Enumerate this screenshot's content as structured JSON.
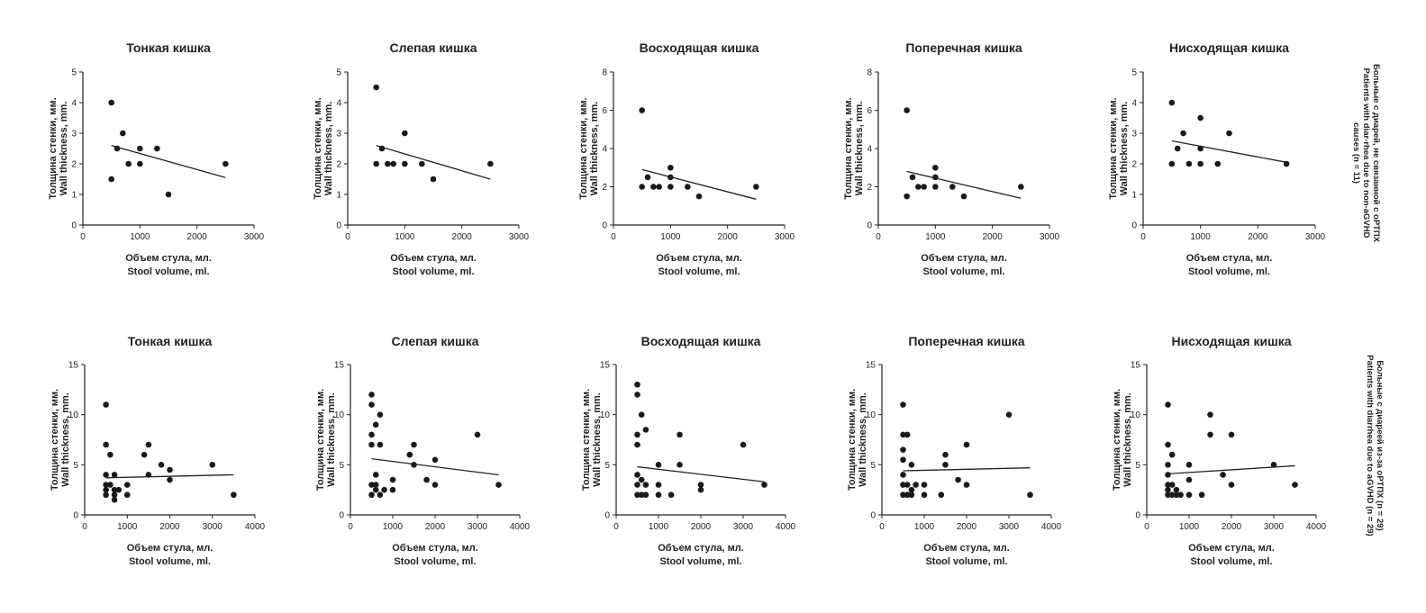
{
  "figure": {
    "row_labels": [
      [
        "Больные с диарей, не связанной с оРТПХ",
        "Patients with diar-rhea due to non-aGVHD",
        "causes (n = 11)"
      ],
      [
        "Больные с диареей из-за оРТПХ (n = 29)",
        "Patients with diarrhea due to aGVHD (n = 29)"
      ]
    ]
  },
  "chart_data": [
    {
      "type": "scatter",
      "title": "Тонкая кишка",
      "xlabel": [
        "Объем стула, мл.",
        "Stool volume, ml."
      ],
      "ylabel": [
        "Толщина стенки, мм.",
        "Wall thickness, mm."
      ],
      "xlim": [
        0,
        3000
      ],
      "ylim": [
        0,
        5
      ],
      "xticks": [
        0,
        1000,
        2000,
        3000
      ],
      "yticks": [
        0,
        1,
        2,
        3,
        4,
        5
      ],
      "points": [
        [
          500,
          4
        ],
        [
          500,
          1.5
        ],
        [
          600,
          2.5
        ],
        [
          700,
          3
        ],
        [
          800,
          2
        ],
        [
          1000,
          2.5
        ],
        [
          1000,
          2
        ],
        [
          1300,
          2.5
        ],
        [
          1500,
          1
        ],
        [
          2500,
          2
        ]
      ],
      "trendline": [
        [
          500,
          2.6
        ],
        [
          2500,
          1.55
        ]
      ]
    },
    {
      "type": "scatter",
      "title": "Слепая кишка",
      "xlabel": [
        "Объем стула, мл.",
        "Stool volume, ml."
      ],
      "ylabel": [
        "Толщина стенки, мм.",
        "Wall thickness, mm."
      ],
      "xlim": [
        0,
        3000
      ],
      "ylim": [
        0,
        5
      ],
      "xticks": [
        0,
        1000,
        2000,
        3000
      ],
      "yticks": [
        0,
        1,
        2,
        3,
        4,
        5
      ],
      "points": [
        [
          500,
          4.5
        ],
        [
          500,
          2
        ],
        [
          600,
          2.5
        ],
        [
          700,
          2
        ],
        [
          800,
          2
        ],
        [
          1000,
          3
        ],
        [
          1000,
          2
        ],
        [
          1300,
          2
        ],
        [
          1500,
          1.5
        ],
        [
          2500,
          2
        ]
      ],
      "trendline": [
        [
          500,
          2.6
        ],
        [
          2500,
          1.5
        ]
      ]
    },
    {
      "type": "scatter",
      "title": "Восходящая кишка",
      "xlabel": [
        "Объем стула, мл.",
        "Stool volume, ml."
      ],
      "ylabel": [
        "Толщина стенки, мм.",
        "Wall thickness, mm."
      ],
      "xlim": [
        0,
        3000
      ],
      "ylim": [
        0,
        8
      ],
      "xticks": [
        0,
        1000,
        2000,
        3000
      ],
      "yticks": [
        0,
        2,
        4,
        6,
        8
      ],
      "points": [
        [
          500,
          6
        ],
        [
          500,
          2
        ],
        [
          600,
          2.5
        ],
        [
          700,
          2
        ],
        [
          800,
          2
        ],
        [
          1000,
          3
        ],
        [
          1000,
          2.5
        ],
        [
          1000,
          2
        ],
        [
          1300,
          2
        ],
        [
          1500,
          1.5
        ],
        [
          2500,
          2
        ]
      ],
      "trendline": [
        [
          500,
          2.9
        ],
        [
          2500,
          1.35
        ]
      ]
    },
    {
      "type": "scatter",
      "title": "Поперечная кишка",
      "xlabel": [
        "Объем стула, мл.",
        "Stool volume, ml."
      ],
      "ylabel": [
        "Толщина стенки, мм.",
        "Wall thickness, mm."
      ],
      "xlim": [
        0,
        3000
      ],
      "ylim": [
        0,
        8
      ],
      "xticks": [
        0,
        1000,
        2000,
        3000
      ],
      "yticks": [
        0,
        2,
        4,
        6,
        8
      ],
      "points": [
        [
          500,
          6
        ],
        [
          500,
          1.5
        ],
        [
          600,
          2.5
        ],
        [
          700,
          2
        ],
        [
          800,
          2
        ],
        [
          1000,
          3
        ],
        [
          1000,
          2.5
        ],
        [
          1000,
          2
        ],
        [
          1300,
          2
        ],
        [
          1500,
          1.5
        ],
        [
          2500,
          2
        ]
      ],
      "trendline": [
        [
          500,
          2.8
        ],
        [
          2500,
          1.4
        ]
      ]
    },
    {
      "type": "scatter",
      "title": "Нисходящая кишка",
      "xlabel": [
        "Объем стула, мл.",
        "Stool volume, ml."
      ],
      "ylabel": [
        "Толщина стенки, мм.",
        "Wall thickness, mm."
      ],
      "xlim": [
        0,
        3000
      ],
      "ylim": [
        0,
        5
      ],
      "xticks": [
        0,
        1000,
        2000,
        3000
      ],
      "yticks": [
        0,
        1,
        2,
        3,
        4,
        5
      ],
      "points": [
        [
          500,
          4
        ],
        [
          500,
          2
        ],
        [
          600,
          2.5
        ],
        [
          700,
          3
        ],
        [
          800,
          2
        ],
        [
          1000,
          3.5
        ],
        [
          1000,
          2.5
        ],
        [
          1000,
          2
        ],
        [
          1300,
          2
        ],
        [
          1500,
          3
        ],
        [
          2500,
          2
        ]
      ],
      "trendline": [
        [
          500,
          2.75
        ],
        [
          2500,
          2.05
        ]
      ]
    },
    {
      "type": "scatter",
      "title": "Тонкая кишка",
      "xlabel": [
        "Объем стула, мл.",
        "Stool volume, ml."
      ],
      "ylabel": [
        "Толщина стенки, мм.",
        "Wall thickness, mm."
      ],
      "xlim": [
        0,
        4000
      ],
      "ylim": [
        0,
        15
      ],
      "xticks": [
        0,
        1000,
        2000,
        3000,
        4000
      ],
      "yticks": [
        0,
        5,
        10,
        15
      ],
      "points": [
        [
          500,
          11
        ],
        [
          500,
          7
        ],
        [
          500,
          4
        ],
        [
          500,
          3
        ],
        [
          500,
          2.5
        ],
        [
          500,
          2
        ],
        [
          600,
          6
        ],
        [
          600,
          3
        ],
        [
          700,
          4
        ],
        [
          700,
          2.5
        ],
        [
          700,
          2
        ],
        [
          700,
          1.5
        ],
        [
          800,
          2.5
        ],
        [
          1000,
          2
        ],
        [
          1000,
          3
        ],
        [
          1400,
          6
        ],
        [
          1500,
          7
        ],
        [
          1500,
          4
        ],
        [
          1800,
          5
        ],
        [
          2000,
          3.5
        ],
        [
          2000,
          4.5
        ],
        [
          3000,
          5
        ],
        [
          3500,
          2
        ]
      ],
      "trendline": [
        [
          500,
          3.7
        ],
        [
          3500,
          4.0
        ]
      ]
    },
    {
      "type": "scatter",
      "title": "Слепая кишка",
      "xlabel": [
        "Объем стула, мл.",
        "Stool volume, ml."
      ],
      "ylabel": [
        "Толщина стенки, мм.",
        "Wall thickness, mm."
      ],
      "xlim": [
        0,
        4000
      ],
      "ylim": [
        0,
        15
      ],
      "xticks": [
        0,
        1000,
        2000,
        3000,
        4000
      ],
      "yticks": [
        0,
        5,
        10,
        15
      ],
      "points": [
        [
          500,
          12
        ],
        [
          500,
          11
        ],
        [
          500,
          8
        ],
        [
          500,
          7
        ],
        [
          500,
          3
        ],
        [
          500,
          2
        ],
        [
          600,
          9
        ],
        [
          600,
          4
        ],
        [
          600,
          3
        ],
        [
          600,
          2.5
        ],
        [
          700,
          10
        ],
        [
          700,
          7
        ],
        [
          700,
          2
        ],
        [
          800,
          2.5
        ],
        [
          1000,
          3.5
        ],
        [
          1000,
          2.5
        ],
        [
          1400,
          6
        ],
        [
          1500,
          7
        ],
        [
          1500,
          5
        ],
        [
          1800,
          3.5
        ],
        [
          2000,
          5.5
        ],
        [
          2000,
          3
        ],
        [
          3000,
          8
        ],
        [
          3500,
          3
        ]
      ],
      "trendline": [
        [
          500,
          5.6
        ],
        [
          3500,
          4.0
        ]
      ]
    },
    {
      "type": "scatter",
      "title": "Восходящая кишка",
      "xlabel": [
        "Объем стула, мл.",
        "Stool volume, ml."
      ],
      "ylabel": [
        "Толщина стенки, мм.",
        "Wall thickness, mm."
      ],
      "xlim": [
        0,
        4000
      ],
      "ylim": [
        0,
        15
      ],
      "xticks": [
        0,
        1000,
        2000,
        3000,
        4000
      ],
      "yticks": [
        0,
        5,
        10,
        15
      ],
      "points": [
        [
          500,
          13
        ],
        [
          500,
          12
        ],
        [
          500,
          8
        ],
        [
          500,
          7
        ],
        [
          500,
          4
        ],
        [
          500,
          3
        ],
        [
          500,
          2
        ],
        [
          600,
          10
        ],
        [
          600,
          3.5
        ],
        [
          600,
          2
        ],
        [
          700,
          8.5
        ],
        [
          700,
          3
        ],
        [
          700,
          2
        ],
        [
          1000,
          5
        ],
        [
          1000,
          3
        ],
        [
          1000,
          2
        ],
        [
          1300,
          2
        ],
        [
          1500,
          8
        ],
        [
          1500,
          5
        ],
        [
          2000,
          3
        ],
        [
          2000,
          2.5
        ],
        [
          3000,
          7
        ],
        [
          3500,
          3
        ]
      ],
      "trendline": [
        [
          500,
          4.8
        ],
        [
          3500,
          3.3
        ]
      ]
    },
    {
      "type": "scatter",
      "title": "Поперечная кишка",
      "xlabel": [
        "Объем стула, мл.",
        "Stool volume, ml."
      ],
      "ylabel": [
        "Толщина стенки, мм.",
        "Wall thickness, mm."
      ],
      "xlim": [
        0,
        4000
      ],
      "ylim": [
        0,
        15
      ],
      "xticks": [
        0,
        1000,
        2000,
        3000,
        4000
      ],
      "yticks": [
        0,
        5,
        10,
        15
      ],
      "points": [
        [
          500,
          11
        ],
        [
          500,
          8
        ],
        [
          500,
          6.5
        ],
        [
          500,
          5.5
        ],
        [
          500,
          4
        ],
        [
          500,
          3
        ],
        [
          500,
          2
        ],
        [
          600,
          8
        ],
        [
          600,
          3
        ],
        [
          600,
          2
        ],
        [
          700,
          5
        ],
        [
          700,
          2.5
        ],
        [
          700,
          2
        ],
        [
          800,
          3
        ],
        [
          1000,
          3
        ],
        [
          1000,
          2
        ],
        [
          1400,
          2
        ],
        [
          1500,
          6
        ],
        [
          1500,
          5
        ],
        [
          1800,
          3.5
        ],
        [
          2000,
          7
        ],
        [
          2000,
          3
        ],
        [
          3000,
          10
        ],
        [
          3500,
          2
        ]
      ],
      "trendline": [
        [
          500,
          4.4
        ],
        [
          3500,
          4.7
        ]
      ]
    },
    {
      "type": "scatter",
      "title": "Нисходящая кишка",
      "xlabel": [
        "Объем стула, мл.",
        "Stool volume, ml."
      ],
      "ylabel": [
        "Толщина стенки, мм.",
        "Wall thickness, mm."
      ],
      "xlim": [
        0,
        4000
      ],
      "ylim": [
        0,
        15
      ],
      "xticks": [
        0,
        1000,
        2000,
        3000,
        4000
      ],
      "yticks": [
        0,
        5,
        10,
        15
      ],
      "points": [
        [
          500,
          11
        ],
        [
          500,
          7
        ],
        [
          500,
          5
        ],
        [
          500,
          4
        ],
        [
          500,
          3
        ],
        [
          500,
          2.5
        ],
        [
          500,
          2
        ],
        [
          600,
          6
        ],
        [
          600,
          3
        ],
        [
          600,
          2
        ],
        [
          700,
          2.5
        ],
        [
          700,
          2
        ],
        [
          800,
          2
        ],
        [
          1000,
          5
        ],
        [
          1000,
          3.5
        ],
        [
          1000,
          2
        ],
        [
          1300,
          2
        ],
        [
          1500,
          10
        ],
        [
          1500,
          8
        ],
        [
          1800,
          4
        ],
        [
          2000,
          8
        ],
        [
          2000,
          3
        ],
        [
          3000,
          5
        ],
        [
          3500,
          3
        ]
      ],
      "trendline": [
        [
          500,
          4.1
        ],
        [
          3500,
          4.9
        ]
      ]
    }
  ]
}
